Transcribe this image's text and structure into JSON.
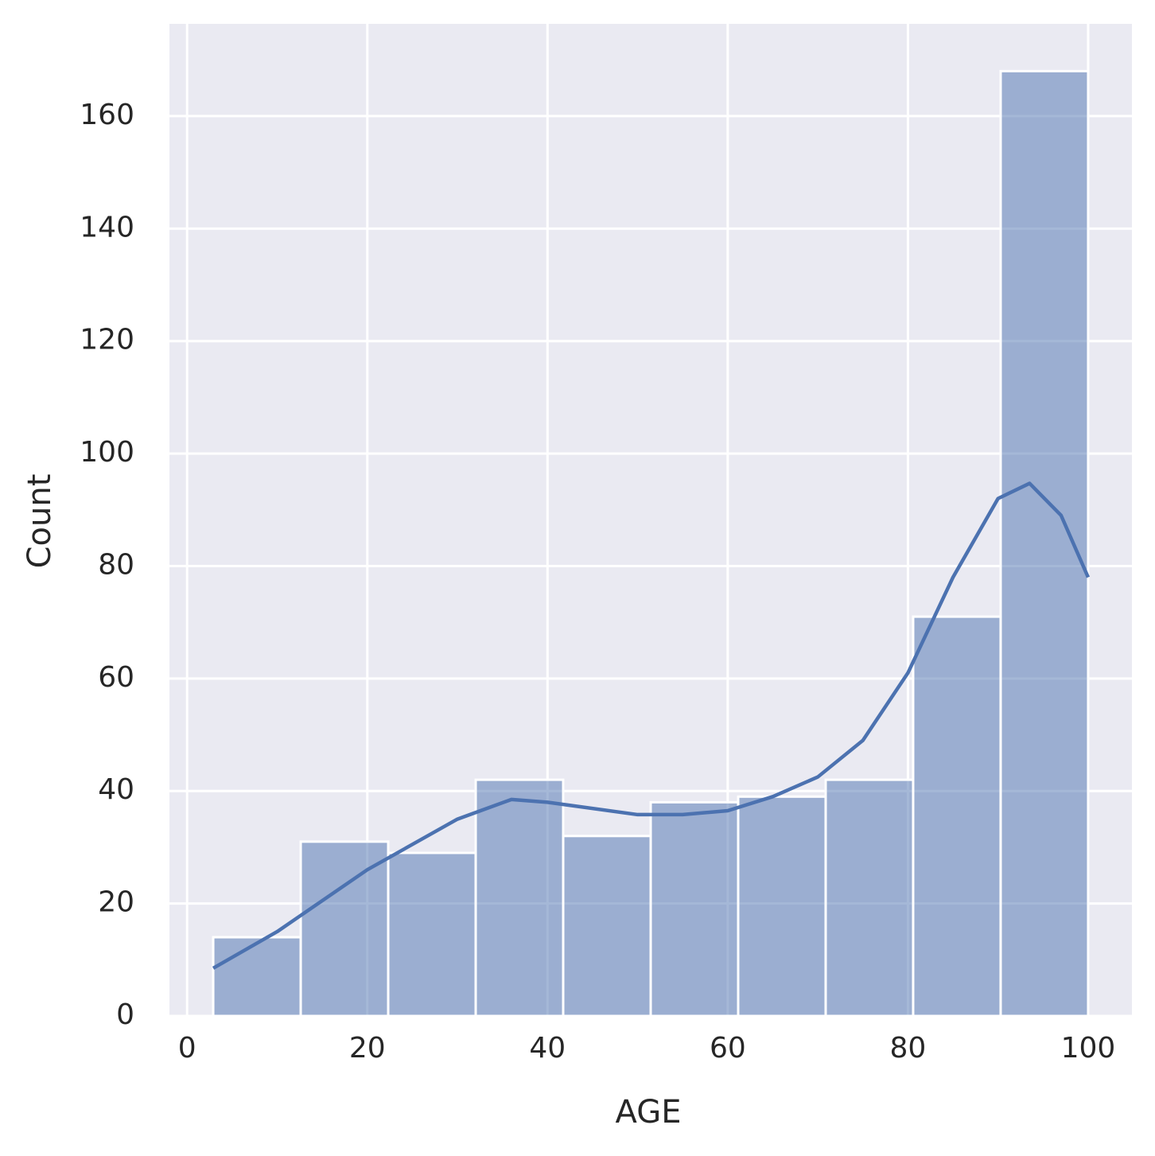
{
  "chart_data": {
    "type": "histogram",
    "xlabel": "AGE",
    "ylabel": "Count",
    "bins": [
      2.9,
      12.61,
      22.32,
      32.03,
      41.74,
      51.45,
      61.16,
      70.87,
      80.58,
      90.29,
      100
    ],
    "counts": [
      14,
      31,
      29,
      42,
      32,
      38,
      39,
      42,
      71,
      168
    ],
    "color": "#4c72b0",
    "kde": {
      "color": "#4c72b0",
      "x": [
        2.9,
        10,
        20,
        30,
        36,
        40,
        50,
        55,
        60,
        65,
        70,
        75,
        80,
        85,
        90,
        93.5,
        97,
        100
      ],
      "values": [
        8.5,
        15,
        26,
        35,
        38.5,
        38,
        35.8,
        35.8,
        36.5,
        39,
        42.5,
        49,
        61,
        78,
        92,
        94.7,
        89,
        78
      ]
    },
    "xlim": [
      -1.96,
      104.86
    ],
    "xticks": [
      0,
      20,
      40,
      60,
      80,
      100
    ],
    "ylim": [
      0,
      176.4
    ],
    "yticks": [
      0,
      20,
      40,
      60,
      80,
      100,
      120,
      140,
      160
    ],
    "grid": true
  }
}
